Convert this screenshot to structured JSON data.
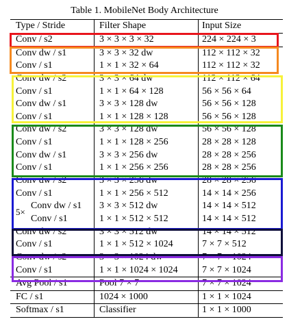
{
  "caption": "Table 1. MobileNet Body Architecture",
  "header": {
    "type": "Type / Stride",
    "filter": "Filter Shape",
    "input": "Input Size"
  },
  "rows": [
    {
      "type": "Conv / s2",
      "filter": "3 × 3 × 3 × 32",
      "input": "224 × 224 × 3"
    },
    {
      "type": "Conv dw / s1",
      "filter": "3 × 3 × 32 dw",
      "input": "112 × 112 × 32"
    },
    {
      "type": "Conv / s1",
      "filter": "1 × 1 × 32 × 64",
      "input": "112 × 112 × 32"
    },
    {
      "type": "Conv dw / s2",
      "filter": "3 × 3 × 64 dw",
      "input": "112 × 112 × 64"
    },
    {
      "type": "Conv / s1",
      "filter": "1 × 1 × 64 × 128",
      "input": "56 × 56 × 64"
    },
    {
      "type": "Conv dw / s1",
      "filter": "3 × 3 × 128 dw",
      "input": "56 × 56 × 128"
    },
    {
      "type": "Conv / s1",
      "filter": "1 × 1 × 128 × 128",
      "input": "56 × 56 × 128"
    },
    {
      "type": "Conv dw / s2",
      "filter": "3 × 3 × 128 dw",
      "input": "56 × 56 × 128"
    },
    {
      "type": "Conv / s1",
      "filter": "1 × 1 × 128 × 256",
      "input": "28 × 28 × 128"
    },
    {
      "type": "Conv dw / s1",
      "filter": "3 × 3 × 256 dw",
      "input": "28 × 28 × 256"
    },
    {
      "type": "Conv / s1",
      "filter": "1 × 1 × 256 × 256",
      "input": "28 × 28 × 256"
    },
    {
      "type": "Conv dw / s2",
      "filter": "3 × 3 × 256 dw",
      "input": "28 × 28 × 256"
    },
    {
      "type": "Conv / s1",
      "filter": "1 × 1 × 256 × 512",
      "input": "14 × 14 × 256"
    },
    {
      "type": "Conv dw / s1",
      "filter": "3 × 3 × 512 dw",
      "input": "14 × 14 × 512"
    },
    {
      "type": "Conv / s1",
      "filter": "1 × 1 × 512 × 512",
      "input": "14 × 14 × 512"
    },
    {
      "type": "Conv dw / s2",
      "filter": "3 × 3 × 512 dw",
      "input": "14 × 14 × 512"
    },
    {
      "type": "Conv / s1",
      "filter": "1 × 1 × 512 × 1024",
      "input": "7 × 7 × 512"
    },
    {
      "type": "Conv dw / s2",
      "filter": "3 × 3 × 1024 dw",
      "input": "7 × 7 × 1024"
    },
    {
      "type": "Conv / s1",
      "filter": "1 × 1 × 1024 × 1024",
      "input": "7 × 7 × 1024"
    },
    {
      "type": "Avg Pool / s1",
      "filter": "Pool 7 × 7",
      "input": "7 × 7 × 1024"
    },
    {
      "type": "FC / s1",
      "filter": "1024 × 1000",
      "input": "1 × 1 × 1024"
    },
    {
      "type": "Softmax / s1",
      "filter": "Classifier",
      "input": "1 × 1 × 1000"
    }
  ],
  "repeat_label": "5×",
  "highlight_colors": {
    "red": "#e8141c",
    "orange": "#f5891f",
    "yellow": "#f7f23a",
    "green": "#1a8a1a",
    "blue": "#1a1ad2",
    "navy": "#0e0e3a",
    "purple": "#8a2be2"
  }
}
